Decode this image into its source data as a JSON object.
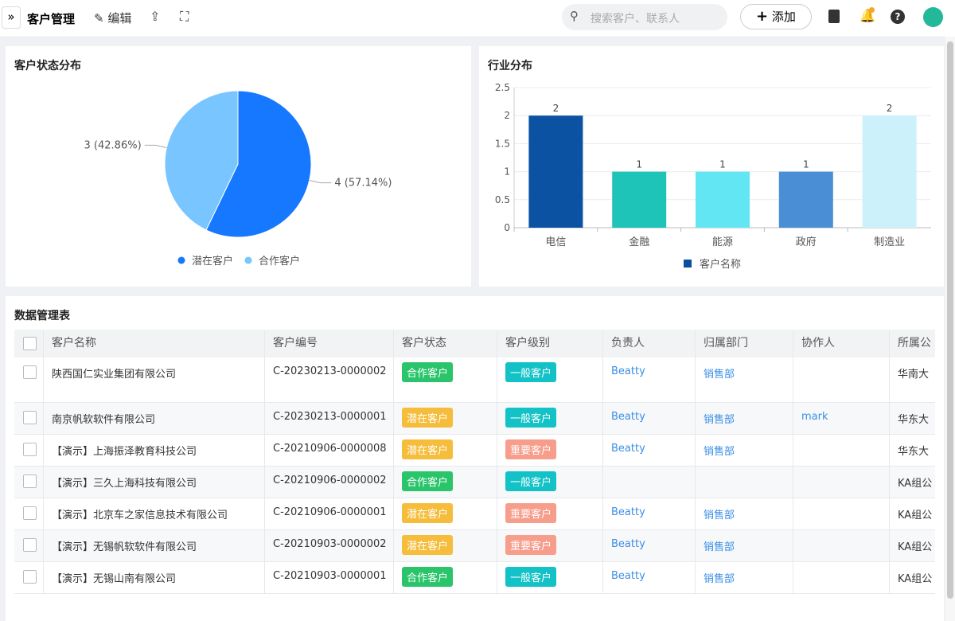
{
  "header": {
    "title": "客户管理",
    "edit": "编辑",
    "search_placeholder": "搜索客户、联系人",
    "add": "添加"
  },
  "chart_data": [
    {
      "type": "pie",
      "title": "客户状态分布",
      "categories": [
        "潜在客户",
        "合作客户"
      ],
      "values": [
        4,
        3
      ],
      "value_labels": [
        "4 (57.14%)",
        "3 (42.86%)"
      ],
      "colors": [
        "#1677ff",
        "#79c5ff"
      ]
    },
    {
      "type": "bar",
      "title": "行业分布",
      "categories": [
        "电信",
        "金融",
        "能源",
        "政府",
        "制造业"
      ],
      "series": [
        {
          "name": "客户名称",
          "color": "#0a4f9e",
          "values": [
            2,
            1,
            1,
            1,
            2
          ]
        }
      ],
      "colors": [
        "#0b52a3",
        "#1ec4b8",
        "#62e6f4",
        "#4a8ed5",
        "#cdf1fb"
      ],
      "ylim": [
        0,
        2.5
      ],
      "yticks": [
        0,
        0.5,
        1,
        1.5,
        2,
        2.5
      ],
      "grid": true
    }
  ],
  "table": {
    "title": "数据管理表",
    "columns": [
      "客户名称",
      "客户编号",
      "客户状态",
      "客户级别",
      "负责人",
      "归属部门",
      "协作人",
      "所属公"
    ],
    "rows": [
      [
        "陕西国仁实业集团有限公司",
        "C-20230213-0000002",
        "合作客户",
        "一般客户",
        "Beatty",
        "销售部",
        null,
        "华南大"
      ],
      [
        "南京帆软软件有限公司",
        "C-20230213-0000001",
        "潜在客户",
        "一般客户",
        "Beatty",
        "销售部",
        "mark",
        "华东大"
      ],
      [
        "【演示】上海振泽教育科技公司",
        "C-20210906-0000008",
        "潜在客户",
        "重要客户",
        "Beatty",
        "销售部",
        null,
        "华东大"
      ],
      [
        "【演示】三久上海科技有限公司",
        "C-20210906-0000002",
        "合作客户",
        "一般客户",
        null,
        null,
        null,
        "KA组公"
      ],
      [
        "【演示】北京车之家信息技术有限公司",
        "C-20210906-0000001",
        "潜在客户",
        "重要客户",
        "Beatty",
        "销售部",
        null,
        "KA组公"
      ],
      [
        "【演示】无锡帆软软件有限公司",
        "C-20210903-0000002",
        "潜在客户",
        "重要客户",
        "Beatty",
        "销售部",
        null,
        "KA组公"
      ],
      [
        "【演示】无锡山南有限公司",
        "C-20210903-0000001",
        "合作客户",
        "一般客户",
        "Beatty",
        "销售部",
        null,
        "KA组公"
      ]
    ],
    "tag_colors": {
      "合作客户": "#2ac56b",
      "潜在客户": "#f6bd3c",
      "一般客户": "#12c2c6",
      "重要客户": "#f79d8b"
    }
  }
}
